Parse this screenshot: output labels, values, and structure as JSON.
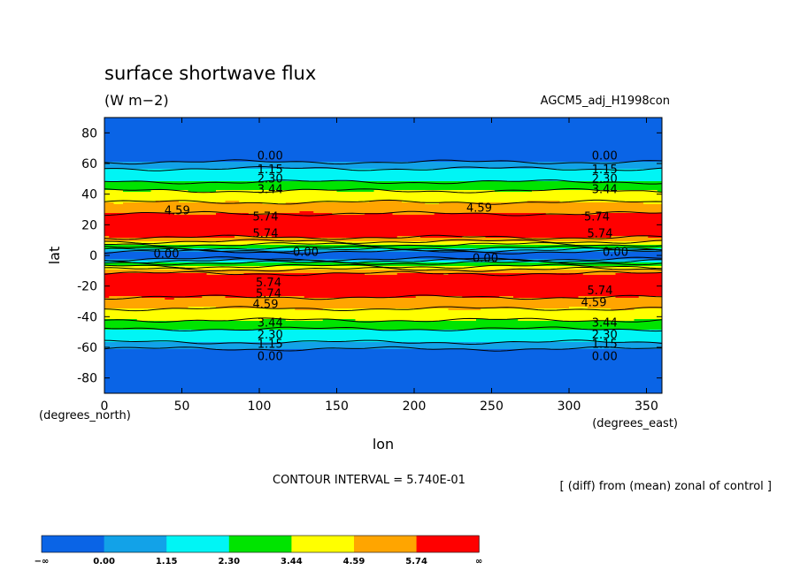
{
  "chart_data": {
    "type": "heatmap",
    "title": "surface shortwave flux",
    "subtitle": "(W m−2)",
    "experiment": "AGCM5_adj_H1998con",
    "xlabel": "lon",
    "ylabel": "lat",
    "x_unit_label": "(degrees_east)",
    "y_unit_label": "(degrees_north)",
    "xlim": [
      0,
      360
    ],
    "ylim": [
      -90,
      90
    ],
    "x_ticks": [
      0,
      50,
      100,
      150,
      200,
      250,
      300,
      350
    ],
    "y_ticks": [
      80,
      60,
      40,
      20,
      0,
      -20,
      -40,
      -60,
      -80
    ],
    "contour_interval_text": "CONTOUR INTERVAL = 5.740E-01",
    "note": "[ (diff) from (mean) zonal of control ]",
    "levels": [
      0.0,
      1.15,
      2.3,
      3.44,
      4.59,
      5.74
    ],
    "colorbar": {
      "labels": [
        "−∞",
        "0.00",
        "1.15",
        "2.30",
        "3.44",
        "4.59",
        "5.74",
        "∞"
      ],
      "colors": [
        "#0a64e6",
        "#12a2e8",
        "#00f5f5",
        "#00e400",
        "#ffff00",
        "#ffa500",
        "#ff0000"
      ]
    },
    "profile_lat": [
      -90,
      -62,
      -59,
      -56,
      -54,
      -50,
      -46,
      -44,
      -41,
      -38,
      -33,
      -29,
      -26,
      -24,
      -20,
      -14,
      -10,
      -8,
      -6,
      -4,
      -3,
      -2,
      2,
      3,
      4,
      6,
      8,
      10,
      14,
      20,
      24,
      26,
      29,
      33,
      38,
      41,
      44,
      46,
      50,
      54,
      56,
      59,
      62,
      90
    ],
    "profile_val": [
      -0.3,
      -0.3,
      0.6,
      1.3,
      1.7,
      2.0,
      2.6,
      3.2,
      3.6,
      4.2,
      4.8,
      5.4,
      6.0,
      6.4,
      6.6,
      6.4,
      5.2,
      3.8,
      3.0,
      1.8,
      0.6,
      -0.3,
      -0.3,
      0.6,
      1.8,
      3.0,
      3.8,
      5.2,
      6.4,
      6.6,
      6.4,
      6.0,
      5.4,
      4.8,
      4.2,
      3.6,
      3.2,
      2.6,
      2.0,
      1.7,
      1.3,
      0.6,
      -0.3,
      -0.3
    ],
    "contour_labels": [
      {
        "text": "0.00",
        "lon": 107,
        "lat": 65
      },
      {
        "text": "1.15",
        "lon": 107,
        "lat": 56
      },
      {
        "text": "2.30",
        "lon": 107,
        "lat": 50
      },
      {
        "text": "3.44",
        "lon": 107,
        "lat": 43
      },
      {
        "text": "4.59",
        "lon": 47,
        "lat": 29
      },
      {
        "text": "5.74",
        "lon": 104,
        "lat": 25
      },
      {
        "text": "5.74",
        "lon": 104,
        "lat": 14
      },
      {
        "text": "0.00",
        "lon": 40,
        "lat": 1
      },
      {
        "text": "0.00",
        "lon": 130,
        "lat": 2
      },
      {
        "text": "0.00",
        "lon": 246,
        "lat": -2
      },
      {
        "text": "5.74",
        "lon": 106,
        "lat": -18
      },
      {
        "text": "5.74",
        "lon": 106,
        "lat": -25
      },
      {
        "text": "4.59",
        "lon": 104,
        "lat": -32
      },
      {
        "text": "3.44",
        "lon": 107,
        "lat": -44
      },
      {
        "text": "2.30",
        "lon": 107,
        "lat": -52
      },
      {
        "text": "1.15",
        "lon": 107,
        "lat": -58
      },
      {
        "text": "0.00",
        "lon": 107,
        "lat": -66
      },
      {
        "text": "0.00",
        "lon": 323,
        "lat": 65
      },
      {
        "text": "1.15",
        "lon": 323,
        "lat": 56
      },
      {
        "text": "2.30",
        "lon": 323,
        "lat": 50
      },
      {
        "text": "3.44",
        "lon": 323,
        "lat": 43
      },
      {
        "text": "4.59",
        "lon": 242,
        "lat": 31
      },
      {
        "text": "5.74",
        "lon": 318,
        "lat": 25
      },
      {
        "text": "5.74",
        "lon": 320,
        "lat": 14
      },
      {
        "text": "0.00",
        "lon": 330,
        "lat": 2
      },
      {
        "text": "5.74",
        "lon": 320,
        "lat": -23
      },
      {
        "text": "4.59",
        "lon": 316,
        "lat": -31
      },
      {
        "text": "3.44",
        "lon": 323,
        "lat": -44
      },
      {
        "text": "2.30",
        "lon": 323,
        "lat": -52
      },
      {
        "text": "1.15",
        "lon": 323,
        "lat": -58
      },
      {
        "text": "0.00",
        "lon": 323,
        "lat": -66
      }
    ]
  }
}
